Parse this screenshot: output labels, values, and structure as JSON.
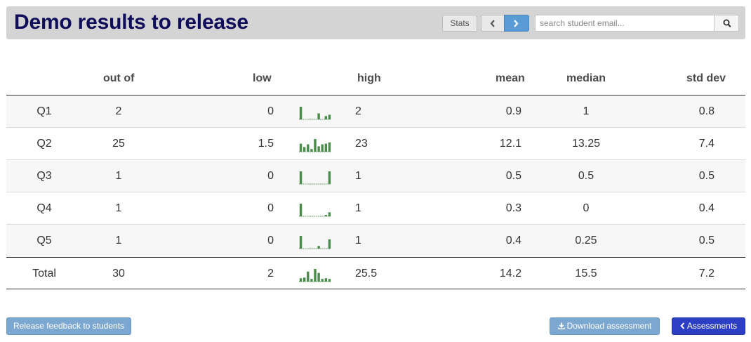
{
  "header": {
    "title": "Demo results to release",
    "stats_label": "Stats",
    "search_placeholder": "search student email..."
  },
  "table": {
    "columns": [
      "",
      "out of",
      "low",
      "high",
      "mean",
      "median",
      "std dev"
    ],
    "rows": [
      {
        "label": "Q1",
        "out_of": "2",
        "low": "0",
        "high": "2",
        "mean": "0.9",
        "median": "1",
        "std_dev": "0.8",
        "hist": [
          0.95,
          0,
          0,
          0,
          0,
          0.45,
          0,
          0.25,
          0.35
        ]
      },
      {
        "label": "Q2",
        "out_of": "25",
        "low": "1.5",
        "high": "23",
        "mean": "12.1",
        "median": "13.25",
        "std_dev": "7.4",
        "hist": [
          0.6,
          0.35,
          0.55,
          0.2,
          0.95,
          0.4,
          0.55,
          0.6,
          0.7
        ]
      },
      {
        "label": "Q3",
        "out_of": "1",
        "low": "0",
        "high": "1",
        "mean": "0.5",
        "median": "0.5",
        "std_dev": "0.5",
        "hist": [
          0.95,
          0,
          0,
          0,
          0,
          0,
          0,
          0,
          0.95
        ]
      },
      {
        "label": "Q4",
        "out_of": "1",
        "low": "0",
        "high": "1",
        "mean": "0.3",
        "median": "0",
        "std_dev": "0.4",
        "hist": [
          0.95,
          0,
          0,
          0,
          0,
          0,
          0,
          0.1,
          0.3
        ]
      },
      {
        "label": "Q5",
        "out_of": "1",
        "low": "0",
        "high": "1",
        "mean": "0.4",
        "median": "0.25",
        "std_dev": "0.5",
        "hist": [
          0.95,
          0,
          0,
          0,
          0,
          0.2,
          0,
          0,
          0.7
        ]
      }
    ],
    "total": {
      "label": "Total",
      "out_of": "30",
      "low": "2",
      "high": "25.5",
      "mean": "14.2",
      "median": "15.5",
      "std_dev": "7.2",
      "hist": [
        0.25,
        0.3,
        0.75,
        0.2,
        0.95,
        0.65,
        0.2,
        0.25,
        0.2
      ]
    }
  },
  "footer": {
    "release_label": "Release feedback to students",
    "download_label": "Download assessment",
    "assessments_label": "Assessments"
  },
  "colors": {
    "title": "#0f0c5a",
    "histogram_bar": "#4a8a4a",
    "primary_button": "#2c3fc4",
    "secondary_button": "#7ba7d1"
  },
  "icons": {
    "prev": "chevron-left-icon",
    "next": "chevron-right-icon",
    "search": "search-icon",
    "download": "download-icon",
    "back": "chevron-left-icon"
  }
}
